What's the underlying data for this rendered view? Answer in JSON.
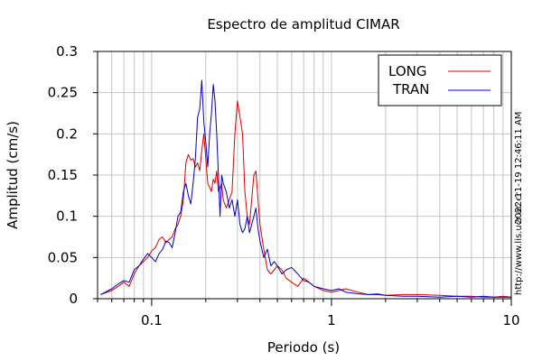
{
  "chart_data": {
    "type": "line",
    "title": "Espectro de amplitud CIMAR",
    "xlabel": "Periodo (s)",
    "ylabel": "Amplitud (cm/s)",
    "x_scale": "log",
    "xlim": [
      0.05,
      10
    ],
    "ylim": [
      0,
      0.3
    ],
    "x_ticks": [
      {
        "value": 0.1,
        "label": "0.1"
      },
      {
        "value": 1,
        "label": "1"
      },
      {
        "value": 10,
        "label": "10"
      }
    ],
    "y_ticks": [
      {
        "value": 0,
        "label": "0"
      },
      {
        "value": 0.05,
        "label": "0.05"
      },
      {
        "value": 0.1,
        "label": "0.1"
      },
      {
        "value": 0.15,
        "label": "0.15"
      },
      {
        "value": 0.2,
        "label": "0.2"
      },
      {
        "value": 0.25,
        "label": "0.25"
      },
      {
        "value": 0.3,
        "label": "0.3"
      }
    ],
    "grid": true,
    "legend_position": "top-right",
    "series": [
      {
        "name": "LONG",
        "color": "#dd0000",
        "x": [
          0.052,
          0.06,
          0.065,
          0.07,
          0.075,
          0.08,
          0.085,
          0.09,
          0.095,
          0.1,
          0.105,
          0.11,
          0.115,
          0.12,
          0.125,
          0.13,
          0.135,
          0.14,
          0.145,
          0.15,
          0.155,
          0.16,
          0.165,
          0.17,
          0.175,
          0.18,
          0.185,
          0.19,
          0.195,
          0.2,
          0.205,
          0.21,
          0.215,
          0.22,
          0.225,
          0.23,
          0.235,
          0.24,
          0.245,
          0.25,
          0.26,
          0.27,
          0.28,
          0.29,
          0.3,
          0.31,
          0.32,
          0.33,
          0.34,
          0.35,
          0.36,
          0.37,
          0.38,
          0.39,
          0.4,
          0.42,
          0.44,
          0.46,
          0.48,
          0.5,
          0.53,
          0.56,
          0.6,
          0.65,
          0.7,
          0.75,
          0.8,
          0.9,
          1.0,
          1.1,
          1.2,
          1.4,
          1.6,
          1.8,
          2.0,
          2.5,
          3.0,
          4.0,
          5.0,
          6.0,
          7.0,
          8.0,
          9.0,
          10.0
        ],
        "values": [
          0.005,
          0.01,
          0.015,
          0.02,
          0.015,
          0.03,
          0.04,
          0.045,
          0.05,
          0.058,
          0.062,
          0.072,
          0.075,
          0.068,
          0.072,
          0.075,
          0.085,
          0.09,
          0.1,
          0.12,
          0.165,
          0.175,
          0.168,
          0.17,
          0.16,
          0.165,
          0.155,
          0.18,
          0.2,
          0.17,
          0.14,
          0.135,
          0.13,
          0.145,
          0.14,
          0.155,
          0.13,
          0.135,
          0.14,
          0.12,
          0.11,
          0.12,
          0.13,
          0.2,
          0.24,
          0.22,
          0.2,
          0.13,
          0.1,
          0.09,
          0.12,
          0.15,
          0.155,
          0.12,
          0.09,
          0.06,
          0.035,
          0.03,
          0.035,
          0.04,
          0.035,
          0.025,
          0.02,
          0.015,
          0.025,
          0.02,
          0.015,
          0.01,
          0.008,
          0.01,
          0.012,
          0.008,
          0.005,
          0.006,
          0.004,
          0.005,
          0.005,
          0.004,
          0.003,
          0.003,
          0.002,
          0.002,
          0.003,
          0.002
        ]
      },
      {
        "name": "TRAN",
        "color": "#0000cc",
        "x": [
          0.052,
          0.06,
          0.065,
          0.07,
          0.075,
          0.08,
          0.085,
          0.09,
          0.095,
          0.1,
          0.105,
          0.11,
          0.115,
          0.12,
          0.125,
          0.13,
          0.135,
          0.14,
          0.145,
          0.15,
          0.155,
          0.16,
          0.165,
          0.17,
          0.175,
          0.18,
          0.185,
          0.19,
          0.195,
          0.2,
          0.205,
          0.21,
          0.215,
          0.22,
          0.225,
          0.23,
          0.235,
          0.24,
          0.245,
          0.25,
          0.26,
          0.27,
          0.28,
          0.29,
          0.3,
          0.31,
          0.32,
          0.33,
          0.34,
          0.35,
          0.36,
          0.37,
          0.38,
          0.39,
          0.4,
          0.42,
          0.44,
          0.46,
          0.48,
          0.5,
          0.53,
          0.56,
          0.6,
          0.65,
          0.7,
          0.75,
          0.8,
          0.9,
          1.0,
          1.1,
          1.2,
          1.4,
          1.6,
          1.8,
          2.0,
          2.5,
          3.0,
          4.0,
          5.0,
          6.0,
          7.0,
          8.0,
          9.0,
          10.0
        ],
        "values": [
          0.005,
          0.012,
          0.018,
          0.022,
          0.02,
          0.035,
          0.04,
          0.048,
          0.055,
          0.05,
          0.045,
          0.055,
          0.06,
          0.07,
          0.068,
          0.062,
          0.08,
          0.1,
          0.105,
          0.13,
          0.14,
          0.125,
          0.115,
          0.14,
          0.17,
          0.22,
          0.23,
          0.265,
          0.215,
          0.19,
          0.16,
          0.2,
          0.225,
          0.26,
          0.24,
          0.2,
          0.15,
          0.1,
          0.15,
          0.14,
          0.13,
          0.11,
          0.12,
          0.1,
          0.12,
          0.09,
          0.08,
          0.085,
          0.1,
          0.08,
          0.09,
          0.1,
          0.11,
          0.085,
          0.07,
          0.05,
          0.06,
          0.04,
          0.045,
          0.04,
          0.03,
          0.035,
          0.038,
          0.03,
          0.022,
          0.02,
          0.015,
          0.012,
          0.01,
          0.012,
          0.008,
          0.006,
          0.005,
          0.005,
          0.004,
          0.003,
          0.003,
          0.002,
          0.003,
          0.002,
          0.003,
          0.002,
          0.002,
          0.002
        ]
      }
    ]
  },
  "side_labels": {
    "timestamp": "2022-11-19 12:46:11 AM",
    "url": "http://www.lis.ucr.ac.cr"
  }
}
